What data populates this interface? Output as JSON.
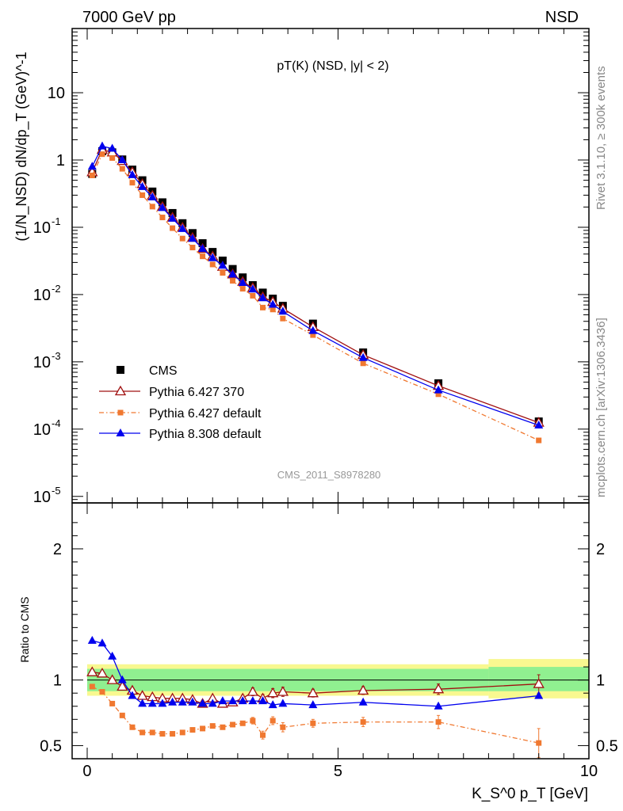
{
  "header": {
    "left": "7000 GeV pp",
    "right": "NSD"
  },
  "side_labels": {
    "rivet": "Rivet 3.1.10, ≥ 300k events",
    "mcplots": "mcplots.cern.ch [arXiv:1306.3436]"
  },
  "colors": {
    "cms": "#000000",
    "p6_370": "#a01010",
    "p6_default": "#f07830",
    "p8_default": "#0000ee",
    "band_inner": "#90f090",
    "band_outer": "#f8f890"
  },
  "chart_data": [
    {
      "type": "scatter",
      "title": "pT(K) (NSD, |y| < 2)",
      "ylabel": "(1/N_NSD) dN/dp_T (GeV)^-1",
      "yscale": "log",
      "ylim": [
        8e-06,
        90
      ],
      "xlim": [
        -0.3,
        10
      ],
      "watermark": "CMS_2011_S8978280",
      "legend_position": "bottom-left",
      "x": [
        0.1,
        0.3,
        0.5,
        0.7,
        0.9,
        1.1,
        1.3,
        1.5,
        1.7,
        1.9,
        2.1,
        2.3,
        2.5,
        2.7,
        2.9,
        3.1,
        3.3,
        3.5,
        3.7,
        3.9,
        4.5,
        5.5,
        7.0,
        9.0
      ],
      "series": [
        {
          "name": "CMS",
          "key": "cms",
          "marker": "square",
          "line": "none",
          "values": [
            0.62,
            1.35,
            1.3,
            1.02,
            0.72,
            0.5,
            0.34,
            0.235,
            0.163,
            0.115,
            0.082,
            0.058,
            0.043,
            0.032,
            0.024,
            0.018,
            0.0138,
            0.0107,
            0.0087,
            0.0068,
            0.0037,
            0.00138,
            0.00048,
            0.00013
          ]
        },
        {
          "name": "Pythia 6.427 370",
          "key": "p6_370",
          "marker": "open-triangle",
          "line": "solid",
          "values": [
            0.66,
            1.42,
            1.3,
            0.97,
            0.66,
            0.44,
            0.296,
            0.202,
            0.14,
            0.099,
            0.07,
            0.048,
            0.037,
            0.026,
            0.02,
            0.0155,
            0.0126,
            0.0092,
            0.0078,
            0.0062,
            0.0033,
            0.00127,
            0.00044,
            0.000125
          ]
        },
        {
          "name": "Pythia 6.427 default",
          "key": "p6_default",
          "marker": "filled-square-small",
          "line": "dashdot",
          "values": [
            0.59,
            1.22,
            1.07,
            0.74,
            0.46,
            0.3,
            0.203,
            0.14,
            0.097,
            0.068,
            0.05,
            0.037,
            0.028,
            0.021,
            0.016,
            0.0122,
            0.0096,
            0.0064,
            0.006,
            0.0044,
            0.0025,
            0.00095,
            0.00033,
            6.8e-05
          ]
        },
        {
          "name": "Pythia 8.308 default",
          "key": "p8_default",
          "marker": "filled-triangle",
          "line": "solid",
          "values": [
            0.8,
            1.6,
            1.48,
            1.0,
            0.6,
            0.4,
            0.28,
            0.195,
            0.135,
            0.095,
            0.068,
            0.048,
            0.035,
            0.027,
            0.02,
            0.015,
            0.012,
            0.0089,
            0.0071,
            0.0056,
            0.0029,
            0.00115,
            0.00038,
            0.000114
          ]
        }
      ]
    },
    {
      "type": "line",
      "ylabel": "Ratio to CMS",
      "xlabel": "K_S^0 p_T [GeV]",
      "xlim": [
        -0.3,
        10
      ],
      "ylim": [
        0.4,
        2.35
      ],
      "reference_line": 1,
      "band": {
        "inner": [
          {
            "x": [
              0.0,
              8.0
            ],
            "lo": 0.915,
            "hi": 1.085
          },
          {
            "x": [
              8.0,
              10.0
            ],
            "lo": 0.915,
            "hi": 1.1
          }
        ],
        "outer": [
          {
            "x": [
              0.0,
              8.0
            ],
            "lo": 0.88,
            "hi": 1.12
          },
          {
            "x": [
              8.0,
              10.0
            ],
            "lo": 0.86,
            "hi": 1.16
          }
        ]
      },
      "x": [
        0.1,
        0.3,
        0.5,
        0.7,
        0.9,
        1.1,
        1.3,
        1.5,
        1.7,
        1.9,
        2.1,
        2.3,
        2.5,
        2.7,
        2.9,
        3.1,
        3.3,
        3.5,
        3.7,
        3.9,
        4.5,
        5.5,
        7.0,
        9.0
      ],
      "series": [
        {
          "name": "Pythia 6.427 370",
          "key": "p6_370",
          "marker": "open-triangle",
          "line": "solid",
          "values": [
            1.06,
            1.05,
            1.0,
            0.95,
            0.92,
            0.88,
            0.87,
            0.86,
            0.86,
            0.86,
            0.85,
            0.82,
            0.86,
            0.82,
            0.83,
            0.86,
            0.91,
            0.86,
            0.9,
            0.91,
            0.9,
            0.92,
            0.93,
            0.97
          ],
          "err": [
            0.02,
            0.02,
            0.015,
            0.015,
            0.015,
            0.015,
            0.015,
            0.015,
            0.015,
            0.015,
            0.015,
            0.02,
            0.02,
            0.02,
            0.02,
            0.025,
            0.03,
            0.03,
            0.035,
            0.035,
            0.03,
            0.03,
            0.04,
            0.07
          ]
        },
        {
          "name": "Pythia 6.427 default",
          "key": "p6_default",
          "marker": "filled-square-small",
          "line": "dashdot",
          "values": [
            0.95,
            0.91,
            0.82,
            0.73,
            0.64,
            0.6,
            0.6,
            0.59,
            0.59,
            0.6,
            0.62,
            0.63,
            0.65,
            0.64,
            0.66,
            0.67,
            0.69,
            0.58,
            0.69,
            0.64,
            0.67,
            0.68,
            0.68,
            0.52
          ],
          "err": [
            0.01,
            0.01,
            0.01,
            0.01,
            0.01,
            0.01,
            0.01,
            0.01,
            0.01,
            0.01,
            0.01,
            0.015,
            0.015,
            0.015,
            0.02,
            0.02,
            0.025,
            0.03,
            0.03,
            0.035,
            0.03,
            0.035,
            0.05,
            0.11
          ]
        },
        {
          "name": "Pythia 8.308 default",
          "key": "p8_default",
          "marker": "filled-triangle",
          "line": "solid",
          "values": [
            1.3,
            1.28,
            1.18,
            1.0,
            0.88,
            0.82,
            0.82,
            0.82,
            0.83,
            0.83,
            0.83,
            0.82,
            0.82,
            0.84,
            0.84,
            0.84,
            0.84,
            0.84,
            0.81,
            0.82,
            0.81,
            0.83,
            0.8,
            0.88
          ],
          "err": [
            0.01,
            0.01,
            0.01,
            0.01,
            0.01,
            0.01,
            0.01,
            0.01,
            0.01,
            0.01,
            0.01,
            0.01,
            0.01,
            0.01,
            0.01,
            0.01,
            0.01,
            0.01,
            0.01,
            0.01,
            0.01,
            0.01,
            0.01,
            0.01
          ]
        }
      ]
    }
  ]
}
